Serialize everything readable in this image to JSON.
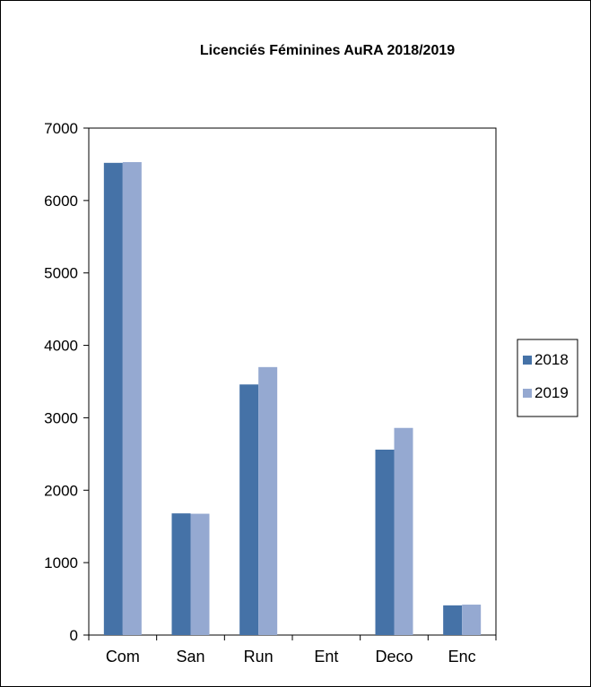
{
  "chart_data": {
    "type": "bar",
    "title": "Licenciés Féminines AuRA 2018/2019",
    "categories": [
      "Com",
      "San",
      "Run",
      "Ent",
      "Deco",
      "Enc"
    ],
    "series": [
      {
        "name": "2018",
        "values": [
          6520,
          1680,
          3460,
          0,
          2560,
          410
        ],
        "color": "#4572a7"
      },
      {
        "name": "2019",
        "values": [
          6530,
          1675,
          3700,
          0,
          2860,
          420
        ],
        "color": "#95a9d1"
      }
    ],
    "xlabel": "",
    "ylabel": "",
    "ylim": [
      0,
      7000
    ],
    "yticks": [
      0,
      1000,
      2000,
      3000,
      4000,
      5000,
      6000,
      7000
    ],
    "grid": false,
    "legend_position": "right"
  }
}
